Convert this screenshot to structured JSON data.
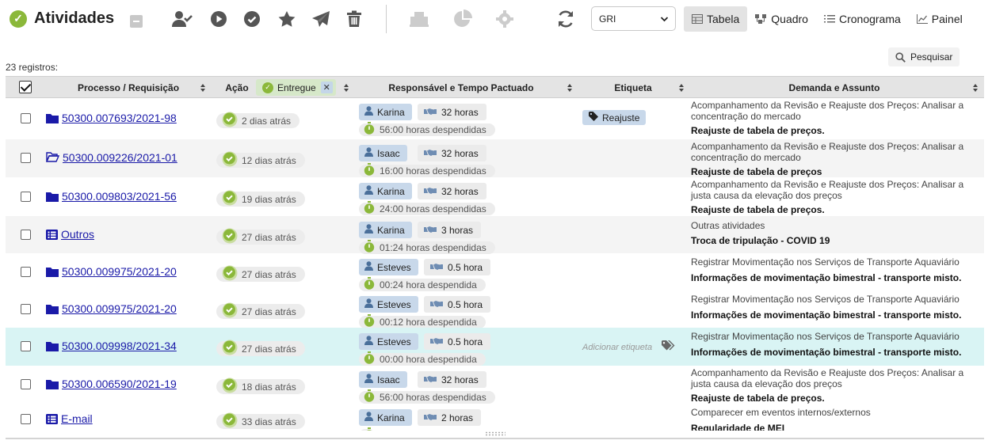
{
  "header": {
    "title": "Atividades",
    "toolbar_icons": [
      "user-check-icon",
      "play-circle-icon",
      "check-circle-icon",
      "star-icon",
      "send-icon",
      "trash-icon",
      "building-icon",
      "pie-chart-icon",
      "gear-icon",
      "refresh-icon"
    ],
    "select_value": "GRI",
    "view_tabs": [
      {
        "label": "Tabela",
        "icon": "table-icon",
        "active": true
      },
      {
        "label": "Quadro",
        "icon": "board-icon",
        "active": false
      },
      {
        "label": "Cronograma",
        "icon": "list-icon",
        "active": false
      },
      {
        "label": "Painel",
        "icon": "line-chart-icon",
        "active": false
      }
    ]
  },
  "records_label": "23 registros:",
  "search_label": "Pesquisar",
  "columns": {
    "processo": "Processo / Requisição",
    "acao": "Ação",
    "filter_chip": "Entregue",
    "responsavel": "Responsável e Tempo Pactuado",
    "etiqueta": "Etiqueta",
    "demanda": "Demanda e Assunto"
  },
  "add_tag_label": "Adicionar etiqueta",
  "colors": {
    "accent_green": "#8bb83a",
    "link_blue": "#1a1aa8",
    "chip_blue": "#c8d8ea",
    "highlight_row": "#d9f4f4"
  },
  "rows": [
    {
      "processo": "50300.007693/2021-98",
      "proc_icon": "folder-icon",
      "acao": "2 dias atrás",
      "responsavel": "Karina",
      "pactuado": "32 horas",
      "despendido": "56:00 horas despendidas",
      "etiqueta": "Reajuste",
      "demanda": "Acompanhamento da Revisão e Reajuste dos Preços: Analisar a concentração do mercado",
      "assunto": "Reajuste de tabela de preços."
    },
    {
      "processo": "50300.009226/2021-01",
      "proc_icon": "folder-open-icon",
      "acao": "12 dias atrás",
      "responsavel": "Isaac",
      "pactuado": "32 horas",
      "despendido": "16:00 horas despendidas",
      "etiqueta": "",
      "demanda": "Acompanhamento da Revisão e Reajuste dos Preços: Analisar a concentração do mercado",
      "assunto": "Reajuste de tabela de preços"
    },
    {
      "processo": "50300.009803/2021-56",
      "proc_icon": "folder-icon",
      "acao": "19 dias atrás",
      "responsavel": "Karina",
      "pactuado": "32 horas",
      "despendido": "24:00 horas despendidas",
      "etiqueta": "",
      "demanda": "Acompanhamento da Revisão e Reajuste dos Preços: Analisar a justa causa da elevação dos preços",
      "assunto": "Reajuste de tabela de preços."
    },
    {
      "processo": "Outros",
      "proc_icon": "list-box-icon",
      "acao": "27 dias atrás",
      "responsavel": "Karina",
      "pactuado": "3 horas",
      "despendido": "01:24 horas despendidas",
      "etiqueta": "",
      "demanda": "Outras atividades",
      "assunto": "Troca de tripulação - COVID 19"
    },
    {
      "processo": "50300.009975/2021-20",
      "proc_icon": "folder-icon",
      "acao": "27 dias atrás",
      "responsavel": "Esteves",
      "pactuado": "0.5 hora",
      "despendido": "00:24 hora despendida",
      "etiqueta": "",
      "demanda": "Registrar Movimentação nos Serviços de Transporte Aquaviário",
      "assunto": "Informações de movimentação bimestral - transporte misto."
    },
    {
      "processo": "50300.009975/2021-20",
      "proc_icon": "folder-icon",
      "acao": "27 dias atrás",
      "responsavel": "Esteves",
      "pactuado": "0.5 hora",
      "despendido": "00:12 hora despendida",
      "etiqueta": "",
      "demanda": "Registrar Movimentação nos Serviços de Transporte Aquaviário",
      "assunto": "Informações de movimentação bimestral - transporte misto."
    },
    {
      "processo": "50300.009998/2021-34",
      "proc_icon": "folder-icon",
      "acao": "27 dias atrás",
      "responsavel": "Esteves",
      "pactuado": "0.5 hora",
      "despendido": "00:00 hora despendida",
      "etiqueta": "",
      "demanda": "Registrar Movimentação nos Serviços de Transporte Aquaviário",
      "assunto": "Informações de movimentação bimestral - transporte misto."
    },
    {
      "processo": "50300.006590/2021-19",
      "proc_icon": "folder-icon",
      "acao": "18 dias atrás",
      "responsavel": "Isaac",
      "pactuado": "32 horas",
      "despendido": "56:00 horas despendidas",
      "etiqueta": "",
      "demanda": "Acompanhamento da Revisão e Reajuste dos Preços: Analisar a justa causa da elevação dos preços",
      "assunto": "Reajuste de tabela de preços."
    },
    {
      "processo": "E-mail",
      "proc_icon": "list-box-icon",
      "acao": "33 dias atrás",
      "responsavel": "Karina",
      "pactuado": "2 horas",
      "despendido": "",
      "etiqueta": "",
      "demanda": "Comparecer em eventos internos/externos",
      "assunto": "Regularidade de MEI"
    }
  ]
}
